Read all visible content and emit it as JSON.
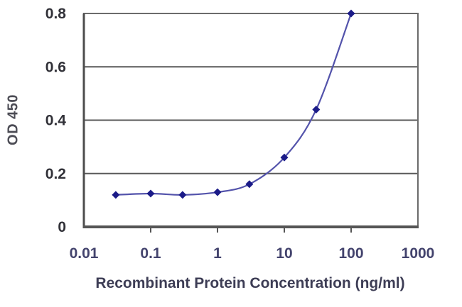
{
  "chart_data": {
    "type": "line",
    "title": "",
    "xlabel": "Recombinant Protein Concentration (ng/ml)",
    "ylabel": "OD 450",
    "x_scale": "log",
    "xlim": [
      0.01,
      1000
    ],
    "ylim": [
      0,
      0.8
    ],
    "x_ticks": [
      0.01,
      0.1,
      1,
      10,
      100,
      1000
    ],
    "x_tick_labels": [
      "0.01",
      "0.1",
      "1",
      "10",
      "100",
      "1000"
    ],
    "y_ticks": [
      0,
      0.2,
      0.4,
      0.6,
      0.8
    ],
    "y_tick_labels": [
      "0",
      "0.2",
      "0.4",
      "0.6",
      "0.8"
    ],
    "grid": "horizontal",
    "legend": "none",
    "marker": "diamond",
    "series": [
      {
        "name": "OD 450",
        "x": [
          0.03,
          0.1,
          0.3,
          1,
          3,
          10,
          30,
          100
        ],
        "y": [
          0.12,
          0.125,
          0.12,
          0.13,
          0.16,
          0.26,
          0.44,
          0.8
        ]
      }
    ],
    "colors": {
      "line": "#5353ab",
      "marker": "#1b1b88",
      "grid": "#595959",
      "axis": "#555555",
      "y_tick_label": "#313138",
      "x_tick_label": "#43436d",
      "axis_title": "#3d3d55",
      "background": "#ffffff"
    }
  }
}
